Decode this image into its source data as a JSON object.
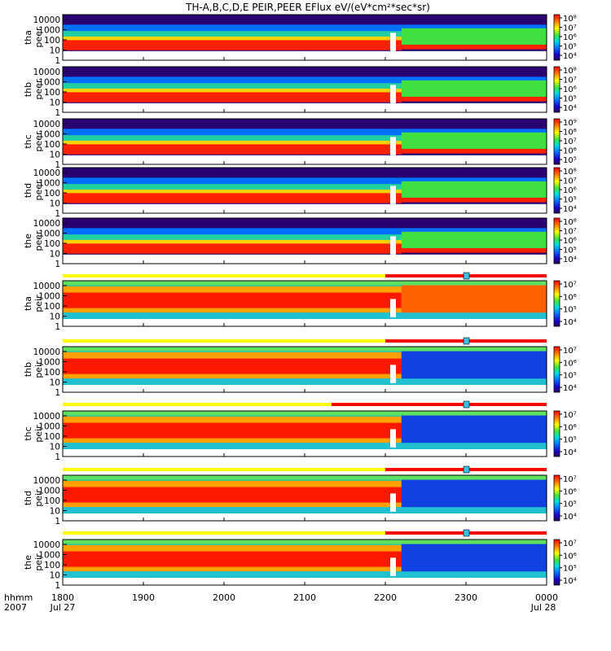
{
  "chart_data": {
    "type": "heatmap",
    "title": "TH-A,B,C,D,E PEIR,PEER EFlux eV/(eV*cm²*sec*sr)",
    "x_units": "hhmm",
    "x_ticks": [
      "1800",
      "1900",
      "2000",
      "2100",
      "2200",
      "2300",
      "0000"
    ],
    "x_range_hhmm": [
      1800,
      2400
    ],
    "x_footer": {
      "row_label": "hhmm",
      "year": "2007",
      "start_date": "Jul 27",
      "end_date": "Jul 28"
    },
    "y_scale": "log",
    "y_range_eV": [
      1,
      30000
    ],
    "y_ticks": [
      "10000",
      "1000",
      "100",
      "10",
      "1"
    ],
    "colorbar_scale": "log",
    "panels": [
      {
        "probe": "tha",
        "instrument": "peer",
        "cbar_labels": [
          "10⁸",
          "10⁷",
          "10⁶",
          "10⁵",
          "10⁴"
        ],
        "cbar_exps": [
          8,
          7,
          6,
          5,
          4
        ]
      },
      {
        "probe": "thb",
        "instrument": "peer",
        "cbar_labels": [
          "10⁸",
          "10⁷",
          "10⁶",
          "10⁵",
          "10⁴"
        ],
        "cbar_exps": [
          8,
          7,
          6,
          5,
          4
        ]
      },
      {
        "probe": "thc",
        "instrument": "peer",
        "cbar_labels": [
          "10⁹",
          "10⁸",
          "10⁷",
          "10⁶",
          "10⁵"
        ],
        "cbar_exps": [
          9,
          8,
          7,
          6,
          5
        ]
      },
      {
        "probe": "thd",
        "instrument": "peer",
        "cbar_labels": [
          "10⁸",
          "10⁷",
          "10⁶",
          "10⁵",
          "10⁴"
        ],
        "cbar_exps": [
          8,
          7,
          6,
          5,
          4
        ]
      },
      {
        "probe": "the",
        "instrument": "peer",
        "cbar_labels": [
          "10⁸",
          "10⁷",
          "10⁶",
          "10⁵",
          "10⁴"
        ],
        "cbar_exps": [
          8,
          7,
          6,
          5,
          4
        ]
      },
      {
        "probe": "tha",
        "instrument": "peir",
        "cbar_labels": [
          "10⁷",
          "10⁶",
          "10⁵",
          "10⁴"
        ],
        "cbar_exps": [
          7,
          6,
          5,
          4
        ]
      },
      {
        "probe": "thb",
        "instrument": "peir",
        "cbar_labels": [
          "10⁷",
          "10⁶",
          "10⁵",
          "10⁴"
        ],
        "cbar_exps": [
          7,
          6,
          5,
          4
        ]
      },
      {
        "probe": "thc",
        "instrument": "peir",
        "cbar_labels": [
          "10⁷",
          "10⁶",
          "10⁵",
          "10⁴"
        ],
        "cbar_exps": [
          7,
          6,
          5,
          4
        ]
      },
      {
        "probe": "thd",
        "instrument": "peir",
        "cbar_labels": [
          "10⁷",
          "10⁶",
          "10⁵",
          "10⁴"
        ],
        "cbar_exps": [
          7,
          6,
          5,
          4
        ]
      },
      {
        "probe": "the",
        "instrument": "peir",
        "cbar_labels": [
          "10⁷",
          "10⁶",
          "10⁵",
          "10⁴"
        ],
        "cbar_exps": [
          7,
          6,
          5,
          4
        ]
      }
    ],
    "mode_bars": [
      {
        "before_panel": 5,
        "yellow_until_hhmm": 2200,
        "marker_hhmm": 2300
      },
      {
        "before_panel": 6,
        "yellow_until_hhmm": 2200,
        "marker_hhmm": 2300
      },
      {
        "before_panel": 7,
        "yellow_until_hhmm": 2120,
        "marker_hhmm": 2300
      },
      {
        "before_panel": 8,
        "yellow_until_hhmm": 2200,
        "marker_hhmm": 2300
      },
      {
        "before_panel": 9,
        "yellow_until_hhmm": 2200,
        "marker_hhmm": 2300
      }
    ],
    "colors": {
      "fast_survey": "#ffff00",
      "burst": "#ff0000",
      "marker": "#40c0e0",
      "missing": "#ffffff"
    }
  }
}
